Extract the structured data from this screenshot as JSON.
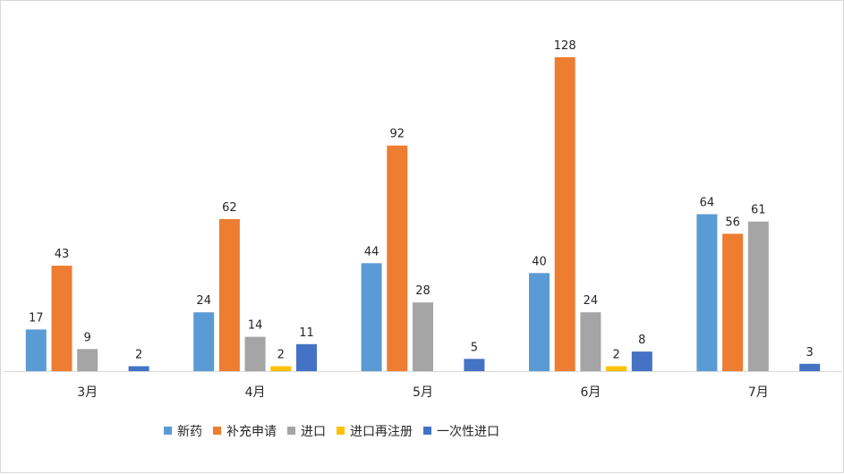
{
  "chart_data": {
    "type": "bar",
    "categories": [
      "3月",
      "4月",
      "5月",
      "6月",
      "7月"
    ],
    "series": [
      {
        "name": "新药",
        "color": "#5B9BD5",
        "values": [
          17,
          24,
          44,
          40,
          64
        ]
      },
      {
        "name": "补充申请",
        "color": "#ED7D31",
        "values": [
          43,
          62,
          92,
          128,
          56
        ]
      },
      {
        "name": "进口",
        "color": "#A5A5A5",
        "values": [
          9,
          14,
          28,
          24,
          61
        ]
      },
      {
        "name": "进口再注册",
        "color": "#FFC000",
        "values": [
          null,
          2,
          null,
          2,
          null
        ]
      },
      {
        "name": "一次性进口",
        "color": "#4472C4",
        "values": [
          2,
          11,
          5,
          8,
          3
        ]
      }
    ],
    "ylim": [
      0,
      128
    ],
    "grid": false,
    "legend_position": "bottom"
  }
}
